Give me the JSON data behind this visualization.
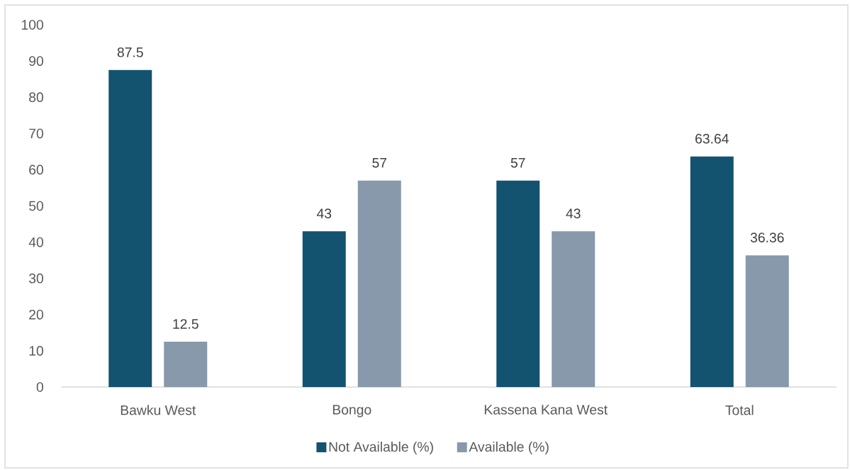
{
  "chart_data": {
    "type": "bar",
    "categories": [
      "Bawku West",
      "Bongo",
      "Kassena Kana West",
      "Total"
    ],
    "series": [
      {
        "name": "Not Available (%)",
        "color": "#145370",
        "values": [
          87.5,
          43,
          57,
          63.64
        ]
      },
      {
        "name": "Available (%)",
        "color": "#8799aa",
        "values": [
          12.5,
          57,
          43,
          36.36
        ]
      }
    ],
    "ylim": [
      0,
      100
    ],
    "yticks": [
      0,
      10,
      20,
      30,
      40,
      50,
      60,
      70,
      80,
      90,
      100
    ],
    "data_labels": true,
    "legend": "bottom",
    "grid": false
  }
}
